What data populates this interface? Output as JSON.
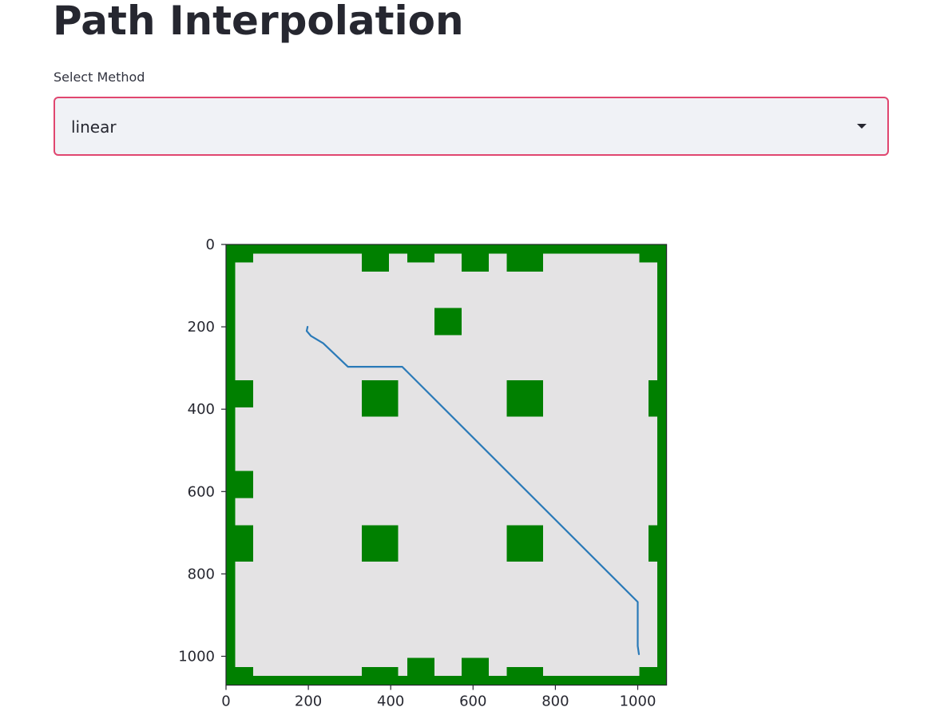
{
  "page": {
    "title": "Path Interpolation"
  },
  "method_select": {
    "label": "Select Method",
    "selected": "linear",
    "accent_color": "#e0466f"
  },
  "chart_data": {
    "type": "image",
    "xlim": [
      0,
      1070
    ],
    "ylim": [
      1070,
      0
    ],
    "x_ticks": [
      0,
      200,
      400,
      600,
      800,
      1000
    ],
    "y_ticks": [
      0,
      200,
      400,
      600,
      800,
      1000
    ],
    "background_color": "#e4e3e4",
    "obstacle_color": "#008000",
    "path_color": "#2a7ab8",
    "obstacles": [
      {
        "x": 0,
        "y": 0,
        "w": 1070,
        "h": 22
      },
      {
        "x": 0,
        "y": 1048,
        "w": 1070,
        "h": 22
      },
      {
        "x": 0,
        "y": 0,
        "w": 22,
        "h": 1070
      },
      {
        "x": 1048,
        "y": 0,
        "w": 22,
        "h": 1070
      },
      {
        "x": 0,
        "y": 0,
        "w": 66,
        "h": 44
      },
      {
        "x": 1004,
        "y": 0,
        "w": 66,
        "h": 44
      },
      {
        "x": 0,
        "y": 1026,
        "w": 66,
        "h": 44
      },
      {
        "x": 1004,
        "y": 1026,
        "w": 66,
        "h": 44
      },
      {
        "x": 330,
        "y": 0,
        "w": 66,
        "h": 66
      },
      {
        "x": 440,
        "y": 0,
        "w": 66,
        "h": 44
      },
      {
        "x": 572,
        "y": 0,
        "w": 66,
        "h": 66
      },
      {
        "x": 682,
        "y": 0,
        "w": 88,
        "h": 66
      },
      {
        "x": 330,
        "y": 1026,
        "w": 88,
        "h": 44
      },
      {
        "x": 440,
        "y": 1004,
        "w": 66,
        "h": 66
      },
      {
        "x": 572,
        "y": 1004,
        "w": 66,
        "h": 66
      },
      {
        "x": 682,
        "y": 1026,
        "w": 88,
        "h": 44
      },
      {
        "x": 0,
        "y": 330,
        "w": 66,
        "h": 66
      },
      {
        "x": 0,
        "y": 550,
        "w": 66,
        "h": 66
      },
      {
        "x": 0,
        "y": 682,
        "w": 66,
        "h": 88
      },
      {
        "x": 1026,
        "y": 330,
        "w": 44,
        "h": 88
      },
      {
        "x": 1026,
        "y": 682,
        "w": 44,
        "h": 88
      },
      {
        "x": 506,
        "y": 154,
        "w": 66,
        "h": 66
      },
      {
        "x": 330,
        "y": 330,
        "w": 88,
        "h": 88
      },
      {
        "x": 682,
        "y": 330,
        "w": 88,
        "h": 88
      },
      {
        "x": 330,
        "y": 682,
        "w": 88,
        "h": 88
      },
      {
        "x": 682,
        "y": 682,
        "w": 88,
        "h": 88
      }
    ],
    "path": [
      [
        198,
        200
      ],
      [
        196,
        210
      ],
      [
        206,
        222
      ],
      [
        236,
        240
      ],
      [
        296,
        297
      ],
      [
        428,
        297
      ],
      [
        1000,
        868
      ],
      [
        1000,
        975
      ],
      [
        1003,
        995
      ]
    ]
  }
}
